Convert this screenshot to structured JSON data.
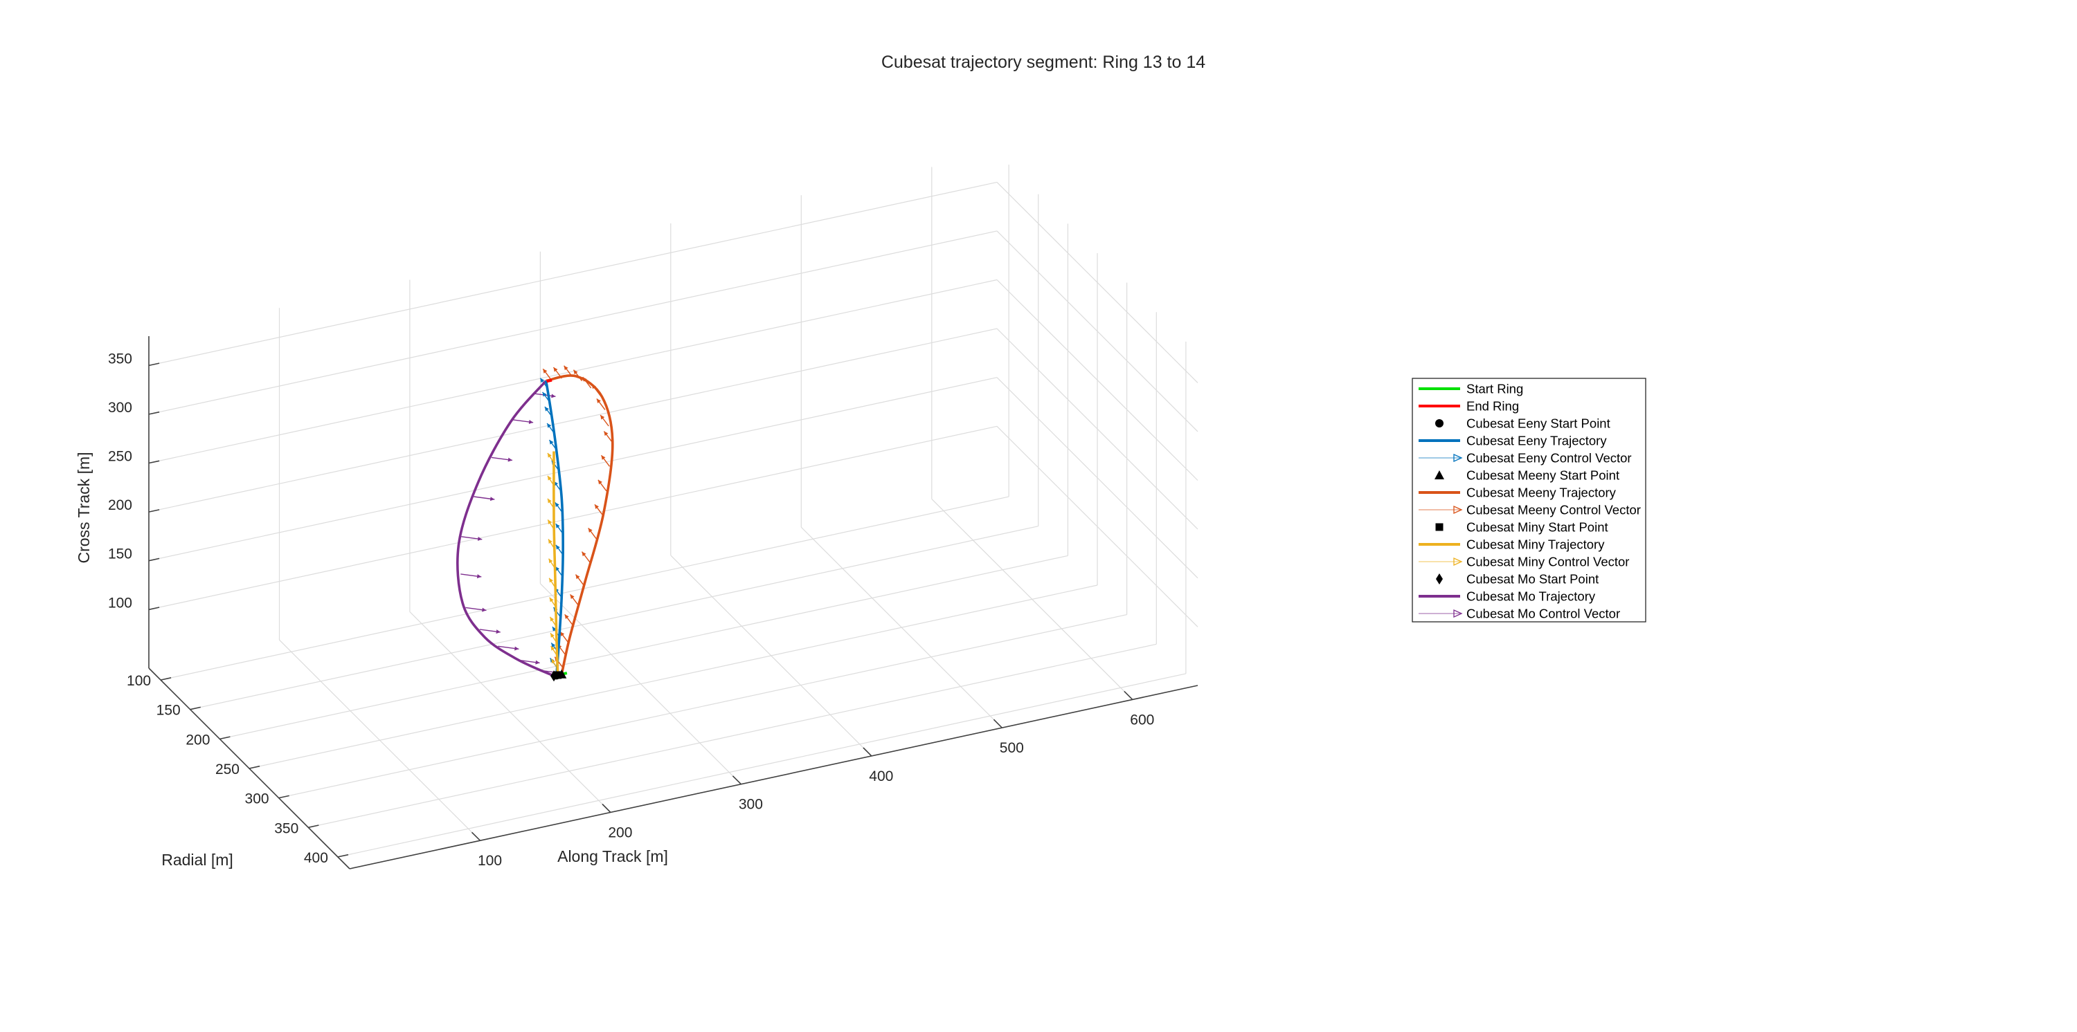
{
  "chart_data": {
    "type": "line3d",
    "title": "Cubesat trajectory segment: Ring 13 to 14",
    "xlabel": "Along Track [m]",
    "ylabel": "Radial [m]",
    "zlabel": "Cross Track [m]",
    "xlim": [
      0,
      650
    ],
    "ylim": [
      80,
      420
    ],
    "zlim": [
      40,
      380
    ],
    "xticks": [
      100,
      200,
      300,
      400,
      500,
      600
    ],
    "yticks": [
      100,
      150,
      200,
      250,
      300,
      350,
      400
    ],
    "zticks": [
      100,
      150,
      200,
      250,
      300,
      350
    ],
    "grid": true,
    "legend_position": "right",
    "colors": {
      "start_ring": "#00e000",
      "end_ring": "#ff0000",
      "eeny": "#0072bd",
      "meeny": "#d95319",
      "miny": "#edb120",
      "mo": "#7e2f8e",
      "marker": "#000000"
    },
    "series": [
      {
        "name": "Start Ring",
        "x": [
          240,
          248
        ],
        "y": [
          240,
          240
        ],
        "z": [
          60,
          60
        ]
      },
      {
        "name": "End Ring",
        "x": [
          232,
          236
        ],
        "y": [
          241,
          241
        ],
        "z": [
          364,
          364
        ]
      },
      {
        "name": "Cubesat Eeny Start Point",
        "x": [
          240
        ],
        "y": [
          240
        ],
        "z": [
          60
        ]
      },
      {
        "name": "Cubesat Eeny Trajectory",
        "x": [
          232,
          236,
          240,
          244,
          245,
          244,
          242,
          240
        ],
        "y": [
          240,
          240,
          240,
          240,
          240,
          240,
          240,
          240
        ],
        "z": [
          364,
          330,
          290,
          240,
          190,
          140,
          95,
          60
        ]
      },
      {
        "name": "Cubesat Eeny Control Vector"
      },
      {
        "name": "Cubesat Meeny Start Point",
        "x": [
          244
        ],
        "y": [
          240
        ],
        "z": [
          60
        ]
      },
      {
        "name": "Cubesat Meeny Trajectory",
        "x": [
          232,
          255,
          275,
          283,
          276,
          262,
          250,
          244
        ],
        "y": [
          240,
          240,
          240,
          240,
          240,
          240,
          240,
          240
        ],
        "z": [
          364,
          362,
          335,
          285,
          215,
          150,
          95,
          60
        ]
      },
      {
        "name": "Cubesat Meeny Control Vector"
      },
      {
        "name": "Cubesat Miny Start Point",
        "x": [
          241
        ],
        "y": [
          240
        ],
        "z": [
          60
        ]
      },
      {
        "name": "Cubesat Miny Trajectory",
        "x": [
          238,
          238,
          239,
          240,
          241
        ],
        "y": [
          240,
          240,
          240,
          240,
          240
        ],
        "z": [
          290,
          220,
          160,
          100,
          60
        ]
      },
      {
        "name": "Cubesat Miny Control Vector"
      },
      {
        "name": "Cubesat Mo Start Point",
        "x": [
          238
        ],
        "y": [
          240
        ],
        "z": [
          60
        ]
      },
      {
        "name": "Cubesat Mo Trajectory",
        "x": [
          232,
          205,
          180,
          165,
          168,
          185,
          210,
          238
        ],
        "y": [
          240,
          240,
          240,
          240,
          240,
          240,
          240,
          240
        ],
        "z": [
          364,
          330,
          275,
          215,
          155,
          115,
          85,
          60
        ]
      },
      {
        "name": "Cubesat Mo Control Vector"
      }
    ]
  }
}
